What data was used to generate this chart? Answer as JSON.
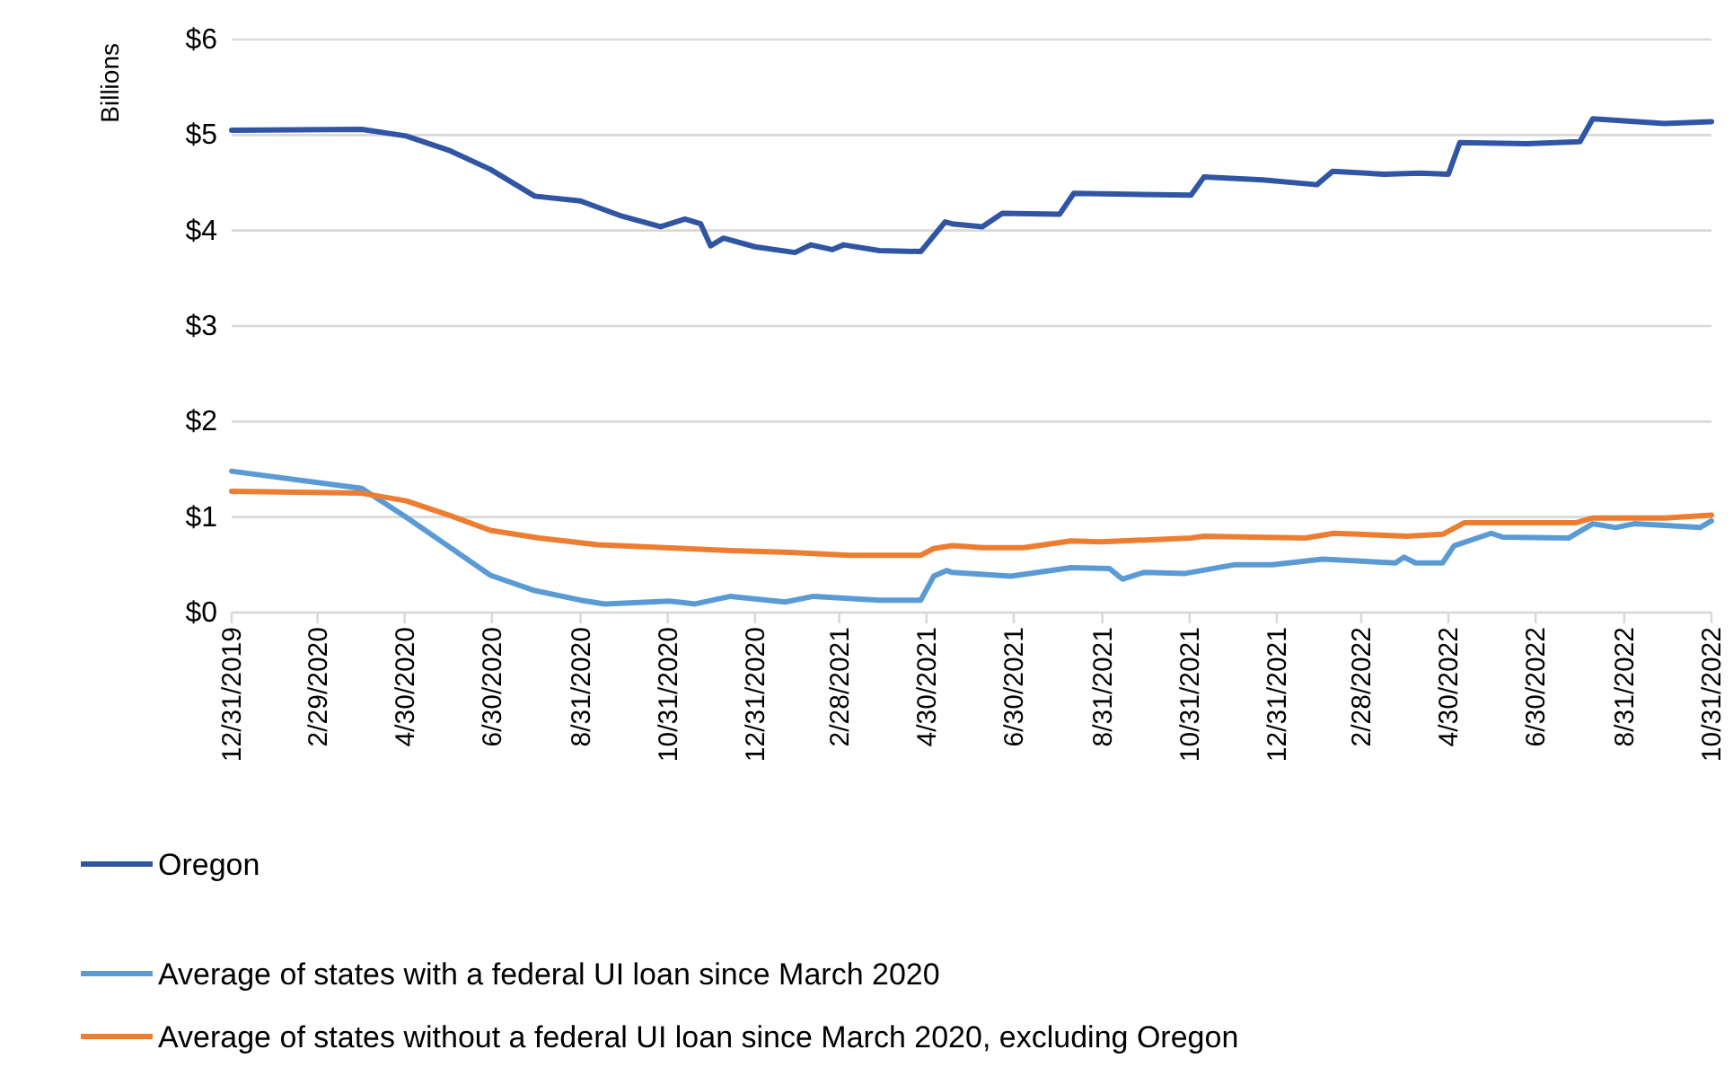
{
  "chart_data": {
    "type": "line",
    "ylabel": "Billions",
    "xlim": [
      "2019-12-31",
      "2022-10-31"
    ],
    "xticks": [
      {
        "value": "2019-12-31",
        "label": "12/31/2019"
      },
      {
        "value": "2020-02-29",
        "label": "2/29/2020"
      },
      {
        "value": "2020-04-30",
        "label": "4/30/2020"
      },
      {
        "value": "2020-06-30",
        "label": "6/30/2020"
      },
      {
        "value": "2020-08-31",
        "label": "8/31/2020"
      },
      {
        "value": "2020-10-31",
        "label": "10/31/2020"
      },
      {
        "value": "2020-12-31",
        "label": "12/31/2020"
      },
      {
        "value": "2021-02-28",
        "label": "2/28/2021"
      },
      {
        "value": "2021-04-30",
        "label": "4/30/2021"
      },
      {
        "value": "2021-06-30",
        "label": "6/30/2021"
      },
      {
        "value": "2021-08-31",
        "label": "8/31/2021"
      },
      {
        "value": "2021-10-31",
        "label": "10/31/2021"
      },
      {
        "value": "2021-12-31",
        "label": "12/31/2021"
      },
      {
        "value": "2022-02-28",
        "label": "2/28/2022"
      },
      {
        "value": "2022-04-30",
        "label": "4/30/2022"
      },
      {
        "value": "2022-06-30",
        "label": "6/30/2022"
      },
      {
        "value": "2022-08-31",
        "label": "8/31/2022"
      },
      {
        "value": "2022-10-31",
        "label": "10/31/2022"
      }
    ],
    "ylim": [
      0,
      6
    ],
    "yticks": [
      {
        "value": 0,
        "label": "$0"
      },
      {
        "value": 1,
        "label": "$1"
      },
      {
        "value": 2,
        "label": "$2"
      },
      {
        "value": 3,
        "label": "$3"
      },
      {
        "value": 4,
        "label": "$4"
      },
      {
        "value": 5,
        "label": "$5"
      },
      {
        "value": 6,
        "label": "$6"
      }
    ],
    "grid": "y",
    "legend": "bottom",
    "marker": "none",
    "line_style": "solid",
    "series": [
      {
        "name": "Oregon",
        "color": "#2f55a4",
        "x": [
          "2019-12-31",
          "2020-03-31",
          "2020-05-01",
          "2020-05-31",
          "2020-06-29",
          "2020-07-30",
          "2020-08-31",
          "2020-09-29",
          "2020-10-26",
          "2020-11-12",
          "2020-11-23",
          "2020-11-30",
          "2020-12-09",
          "2020-12-31",
          "2021-01-28",
          "2021-02-08",
          "2021-02-23",
          "2021-03-03",
          "2021-03-28",
          "2021-04-26",
          "2021-05-13",
          "2021-05-18",
          "2021-06-08",
          "2021-06-22",
          "2021-08-01",
          "2021-08-11",
          "2021-11-01",
          "2021-11-10",
          "2021-12-21",
          "2022-01-28",
          "2022-02-08",
          "2022-03-16",
          "2022-04-10",
          "2022-04-30",
          "2022-05-08",
          "2022-06-24",
          "2022-07-31",
          "2022-08-09",
          "2022-09-28",
          "2022-10-31"
        ],
        "values": [
          5.05,
          5.06,
          4.99,
          4.84,
          4.64,
          4.36,
          4.31,
          4.15,
          4.04,
          4.12,
          4.07,
          3.84,
          3.92,
          3.83,
          3.77,
          3.85,
          3.8,
          3.85,
          3.79,
          3.78,
          4.09,
          4.07,
          4.04,
          4.18,
          4.17,
          4.39,
          4.37,
          4.56,
          4.53,
          4.48,
          4.62,
          4.59,
          4.6,
          4.59,
          4.92,
          4.91,
          4.93,
          5.17,
          5.12,
          5.14
        ]
      },
      {
        "name": "Average of states with a federal UI loan since March 2020",
        "color": "#5b9bd5",
        "x": [
          "2019-12-31",
          "2020-03-31",
          "2020-05-01",
          "2020-05-31",
          "2020-06-29",
          "2020-07-30",
          "2020-08-31",
          "2020-09-17",
          "2020-11-01",
          "2020-11-19",
          "2020-12-14",
          "2021-01-21",
          "2021-02-10",
          "2021-03-28",
          "2021-04-26",
          "2021-05-05",
          "2021-05-14",
          "2021-05-18",
          "2021-06-28",
          "2021-08-09",
          "2021-09-05",
          "2021-09-14",
          "2021-09-29",
          "2021-10-28",
          "2021-12-01",
          "2021-12-28",
          "2022-02-01",
          "2022-03-24",
          "2022-03-30",
          "2022-04-07",
          "2022-04-26",
          "2022-05-04",
          "2022-05-30",
          "2022-06-07",
          "2022-07-23",
          "2022-08-09",
          "2022-08-25",
          "2022-09-07",
          "2022-10-23",
          "2022-10-31"
        ],
        "values": [
          1.48,
          1.3,
          1.0,
          0.69,
          0.39,
          0.23,
          0.13,
          0.09,
          0.12,
          0.09,
          0.17,
          0.11,
          0.17,
          0.13,
          0.13,
          0.38,
          0.44,
          0.42,
          0.38,
          0.47,
          0.46,
          0.35,
          0.42,
          0.41,
          0.5,
          0.5,
          0.56,
          0.52,
          0.58,
          0.52,
          0.52,
          0.7,
          0.83,
          0.79,
          0.78,
          0.93,
          0.89,
          0.93,
          0.89,
          0.96
        ]
      },
      {
        "name": "Average of states without a federal UI loan since March 2020, excluding Oregon",
        "color": "#ed7d31",
        "x": [
          "2019-12-31",
          "2020-03-31",
          "2020-05-01",
          "2020-05-31",
          "2020-06-29",
          "2020-08-02",
          "2020-09-12",
          "2020-10-29",
          "2020-12-14",
          "2021-01-25",
          "2021-03-07",
          "2021-04-26",
          "2021-05-05",
          "2021-05-18",
          "2021-06-08",
          "2021-07-07",
          "2021-08-09",
          "2021-08-30",
          "2021-11-01",
          "2021-11-10",
          "2022-01-20",
          "2022-02-09",
          "2022-04-01",
          "2022-04-26",
          "2022-05-11",
          "2022-07-28",
          "2022-08-09",
          "2022-09-28",
          "2022-10-31"
        ],
        "values": [
          1.27,
          1.25,
          1.17,
          1.02,
          0.86,
          0.78,
          0.71,
          0.68,
          0.65,
          0.63,
          0.6,
          0.6,
          0.67,
          0.7,
          0.68,
          0.68,
          0.75,
          0.74,
          0.78,
          0.8,
          0.78,
          0.83,
          0.8,
          0.82,
          0.94,
          0.94,
          0.99,
          0.99,
          1.02
        ]
      }
    ]
  }
}
